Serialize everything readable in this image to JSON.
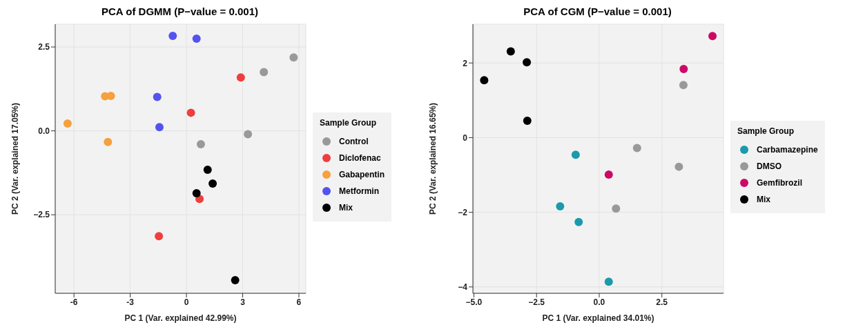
{
  "chart_data": [
    {
      "type": "scatter",
      "title": "PCA of DGMM (P−value = 0.001)",
      "xlabel": "PC 1 (Var. explained 42.99%)",
      "ylabel": "PC 2 (Var. explained 17.05%)",
      "legend_title": "Sample Group",
      "legend": "right",
      "grid": true,
      "marker": "circle",
      "xlim": [
        -7.0,
        6.37
      ],
      "xticks": [
        -6,
        -3,
        0,
        3,
        6
      ],
      "ylim": [
        -4.84,
        3.18
      ],
      "yticks": [
        {
          "value": -2.5,
          "label": "−2.5"
        },
        {
          "value": 0,
          "label": "0.0"
        },
        2.5
      ],
      "series": [
        {
          "name": "Control",
          "color": "#999999",
          "x": [
            5.72,
            4.13,
            3.28,
            0.77
          ],
          "values": [
            2.19,
            1.75,
            -0.1,
            -0.4
          ]
        },
        {
          "name": "Diclofenac",
          "color": "#ef3e3e",
          "x": [
            2.9,
            0.24,
            0.7,
            -1.47
          ],
          "values": [
            1.59,
            0.54,
            -2.03,
            -3.14
          ]
        },
        {
          "name": "Gabapentin",
          "color": "#f6a03e",
          "x": [
            -4.34,
            -4.03,
            -6.34,
            -4.19
          ],
          "values": [
            1.03,
            1.04,
            0.22,
            -0.33
          ]
        },
        {
          "name": "Metformin",
          "color": "#5353ef",
          "x": [
            -0.73,
            0.54,
            -1.56,
            -1.44
          ],
          "values": [
            2.83,
            2.75,
            1.01,
            0.11
          ]
        },
        {
          "name": "Mix",
          "color": "#000000",
          "x": [
            1.13,
            1.4,
            0.54,
            2.6
          ],
          "values": [
            -1.16,
            -1.57,
            -1.86,
            -4.45
          ]
        }
      ]
    },
    {
      "type": "scatter",
      "title": "PCA of CGM (P−value = 0.001)",
      "xlabel": "PC 1 (Var. explained 34.01%)",
      "ylabel": "PC 2 (Var. explained 16.65%)",
      "legend_title": "Sample Group",
      "legend": "right",
      "grid": true,
      "marker": "circle",
      "xlim": [
        -5.04,
        4.96
      ],
      "xticks": [
        {
          "value": -5,
          "label": "−5.0"
        },
        {
          "value": -2.5,
          "label": "−2.5"
        },
        {
          "value": 0,
          "label": "0.0"
        },
        2.5
      ],
      "ylim": [
        -4.17,
        3.04
      ],
      "yticks": [
        {
          "value": -4,
          "label": "−4"
        },
        {
          "value": -2,
          "label": "−2"
        },
        0,
        2
      ],
      "series": [
        {
          "name": "Carbamazepine",
          "color": "#1b9aab",
          "x": [
            -0.94,
            -1.56,
            -0.82,
            0.38
          ],
          "values": [
            -0.46,
            -1.84,
            -2.26,
            -3.86
          ]
        },
        {
          "name": "DMSO",
          "color": "#999999",
          "x": [
            3.36,
            1.51,
            3.18,
            0.67
          ],
          "values": [
            1.41,
            -0.28,
            -0.78,
            -1.9
          ]
        },
        {
          "name": "Gemfibrozil",
          "color": "#cc0a66",
          "x": [
            4.52,
            3.37,
            0.38
          ],
          "values": [
            2.72,
            1.84,
            -0.99
          ]
        },
        {
          "name": "Mix",
          "color": "#000000",
          "x": [
            -3.53,
            -2.89,
            -4.59,
            -2.87
          ],
          "values": [
            2.31,
            2.02,
            1.54,
            0.45
          ]
        }
      ]
    }
  ]
}
